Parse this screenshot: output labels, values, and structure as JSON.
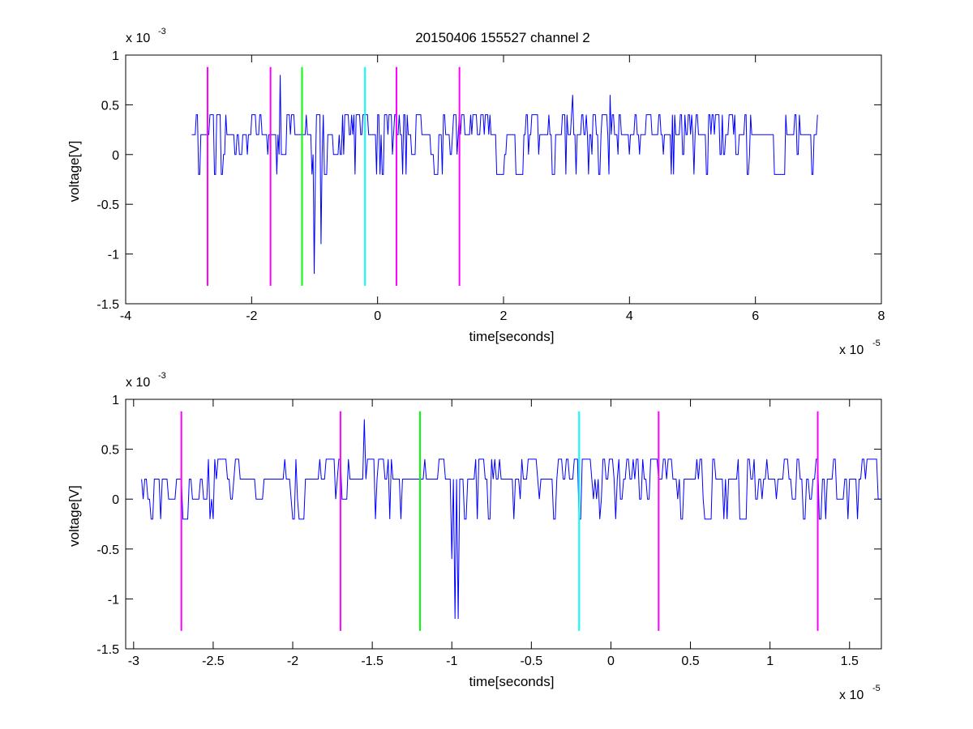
{
  "figure": {
    "title": "20150406 155527 channel 2",
    "background": "#ffffff"
  },
  "chart_data": [
    {
      "type": "line",
      "xlabel": "time[seconds]",
      "ylabel": "voltage[V]",
      "x_exponent_label": "x 10",
      "x_exponent": "-5",
      "y_exponent_label": "x 10",
      "y_exponent": "-3",
      "xlim": [
        -4,
        8
      ],
      "ylim": [
        -1.5,
        1
      ],
      "xticks": [
        -4,
        -2,
        0,
        2,
        4,
        6,
        8
      ],
      "xtick_labels": [
        "-4",
        "-2",
        "0",
        "2",
        "4",
        "6",
        "8"
      ],
      "yticks": [
        -1.5,
        -1,
        -0.5,
        0,
        0.5,
        1
      ],
      "ytick_labels": [
        "-1.5",
        "-1",
        "-0.5",
        "0",
        "0.5",
        "1"
      ],
      "grid": false,
      "series": [
        {
          "style": "signal",
          "color": "#0000ff",
          "seed": 11,
          "x_start": -2.95,
          "x_end": 7.0,
          "step": 0.018,
          "spikes": [
            {
              "x": -1.55,
              "y": 0.8
            },
            {
              "x": -1.0,
              "y": -1.2
            },
            {
              "x": -0.9,
              "y": -0.9
            },
            {
              "x": 3.1,
              "y": 0.6
            },
            {
              "x": 3.7,
              "y": 0.6
            }
          ]
        }
      ],
      "markers": [
        {
          "x": -2.7,
          "color": "#ff00ff",
          "y0": -1.32,
          "y1": 0.88
        },
        {
          "x": -1.7,
          "color": "#ff00ff",
          "y0": -1.32,
          "y1": 0.88
        },
        {
          "x": -1.2,
          "color": "#00ff00",
          "y0": -1.32,
          "y1": 0.88
        },
        {
          "x": -0.2,
          "color": "#00ffff",
          "y0": -1.32,
          "y1": 0.88
        },
        {
          "x": 0.3,
          "color": "#ff00ff",
          "y0": -1.32,
          "y1": 0.88
        },
        {
          "x": 1.3,
          "color": "#ff00ff",
          "y0": -1.32,
          "y1": 0.88
        }
      ]
    },
    {
      "type": "line",
      "xlabel": "time[seconds]",
      "ylabel": "voltage[V]",
      "x_exponent_label": "x 10",
      "x_exponent": "-5",
      "y_exponent_label": "x 10",
      "y_exponent": "-3",
      "xlim": [
        -3.05,
        1.7
      ],
      "ylim": [
        -1.5,
        1
      ],
      "xticks": [
        -3,
        -2.5,
        -2,
        -1.5,
        -1,
        -0.5,
        0,
        0.5,
        1,
        1.5
      ],
      "xtick_labels": [
        "-3",
        "-2.5",
        "-2",
        "-1.5",
        "-1",
        "-0.5",
        "0",
        "0.5",
        "1",
        "1.5"
      ],
      "yticks": [
        -1.5,
        -1,
        -0.5,
        0,
        0.5,
        1
      ],
      "ytick_labels": [
        "-1.5",
        "-1",
        "-0.5",
        "0",
        "0.5",
        "1"
      ],
      "grid": false,
      "series": [
        {
          "style": "signal",
          "color": "#0000ff",
          "seed": 5,
          "x_start": -2.95,
          "x_end": 1.7,
          "step": 0.01,
          "spikes": [
            {
              "x": -1.55,
              "y": 0.8
            },
            {
              "x": -1.0,
              "y": -0.6
            },
            {
              "x": -0.98,
              "y": -1.2
            },
            {
              "x": -0.96,
              "y": -1.2
            }
          ]
        }
      ],
      "markers": [
        {
          "x": -2.7,
          "color": "#ff00ff",
          "y0": -1.32,
          "y1": 0.88
        },
        {
          "x": -1.7,
          "color": "#ff00ff",
          "y0": -1.32,
          "y1": 0.88
        },
        {
          "x": -1.2,
          "color": "#00ff00",
          "y0": -1.32,
          "y1": 0.88
        },
        {
          "x": -0.2,
          "color": "#00ffff",
          "y0": -1.32,
          "y1": 0.88
        },
        {
          "x": 0.3,
          "color": "#ff00ff",
          "y0": -1.32,
          "y1": 0.88
        },
        {
          "x": 1.3,
          "color": "#ff00ff",
          "y0": -1.32,
          "y1": 0.88
        }
      ]
    }
  ]
}
